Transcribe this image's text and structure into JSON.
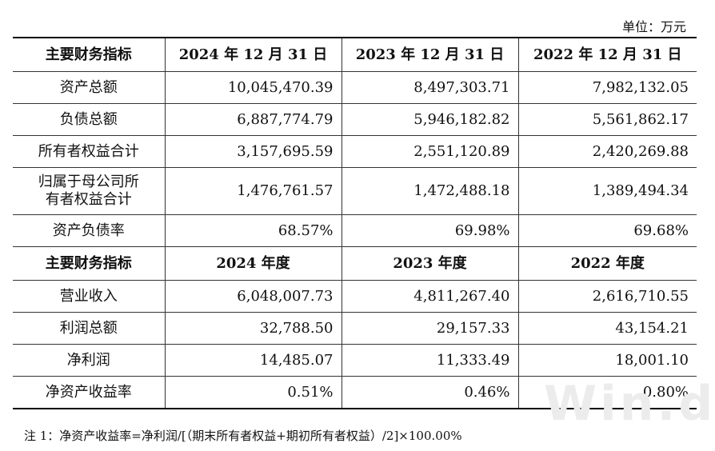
{
  "unit_label": "单位：万元",
  "header1": {
    "label": "主要财务指标",
    "cols": [
      "2024 年 12 月 31 日",
      "2023 年 12 月 31 日",
      "2022 年 12 月 31 日"
    ]
  },
  "rows1": [
    {
      "label": "资产总额",
      "values": [
        "10,045,470.39",
        "8,497,303.71",
        "7,982,132.05"
      ]
    },
    {
      "label": "负债总额",
      "values": [
        "6,887,774.79",
        "5,946,182.82",
        "5,561,862.17"
      ]
    },
    {
      "label": "所有者权益合计",
      "values": [
        "3,157,695.59",
        "2,551,120.89",
        "2,420,269.88"
      ]
    },
    {
      "label_line1": "归属于母公司所",
      "label_line2": "有者权益合计",
      "values": [
        "1,476,761.57",
        "1,472,488.18",
        "1,389,494.34"
      ]
    },
    {
      "label": "资产负债率",
      "values": [
        "68.57%",
        "69.98%",
        "69.68%"
      ]
    }
  ],
  "header2": {
    "label": "主要财务指标",
    "cols": [
      "2024 年度",
      "2023 年度",
      "2022 年度"
    ]
  },
  "rows2": [
    {
      "label": "营业收入",
      "values": [
        "6,048,007.73",
        "4,811,267.40",
        "2,616,710.55"
      ]
    },
    {
      "label": "利润总额",
      "values": [
        "32,788.50",
        "29,157.33",
        "43,154.21"
      ]
    },
    {
      "label": "净利润",
      "values": [
        "14,485.07",
        "11,333.49",
        "18,001.10"
      ]
    },
    {
      "label": "净资产收益率",
      "values": [
        "0.51%",
        "0.46%",
        "0.80%"
      ]
    }
  ],
  "note": "注 1：净资产收益率=净利润/[（期末所有者权益+期初所有者权益）/2]×100.00%",
  "watermark": "Win.d"
}
